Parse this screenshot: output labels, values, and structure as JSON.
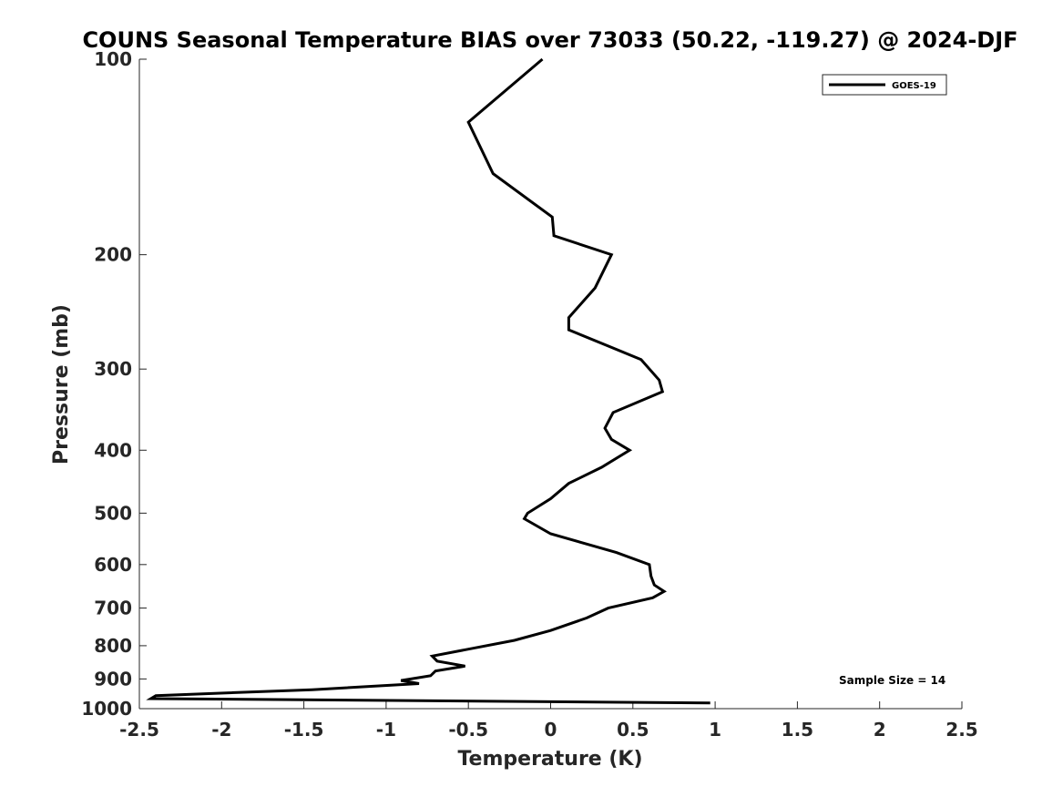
{
  "chart_data": {
    "type": "line",
    "title": "COUNS Seasonal Temperature BIAS over 73033 (50.22, -119.27) @ 2024-DJF",
    "xlabel": "Temperature (K)",
    "ylabel": "Pressure (mb)",
    "xlim": [
      -2.5,
      2.5
    ],
    "ylim": [
      100,
      1000
    ],
    "y_scale": "log",
    "y_reversed": true,
    "grid": false,
    "legend_position": "top-right",
    "x_ticks": [
      "-2.5",
      "-2",
      "-1.5",
      "-1",
      "-0.5",
      "0",
      "0.5",
      "1",
      "1.5",
      "2",
      "2.5"
    ],
    "y_ticks": [
      "100",
      "200",
      "300",
      "400",
      "500",
      "600",
      "700",
      "800",
      "900",
      "1000"
    ],
    "series": [
      {
        "name": "GOES-19",
        "color": "#000000",
        "points": [
          [
            -0.05,
            100
          ],
          [
            -0.5,
            125
          ],
          [
            -0.35,
            150
          ],
          [
            0.01,
            175
          ],
          [
            0.02,
            187
          ],
          [
            0.37,
            200
          ],
          [
            0.27,
            225
          ],
          [
            0.11,
            250
          ],
          [
            0.11,
            261
          ],
          [
            0.55,
            290
          ],
          [
            0.66,
            312
          ],
          [
            0.68,
            325
          ],
          [
            0.38,
            350
          ],
          [
            0.33,
            370
          ],
          [
            0.37,
            385
          ],
          [
            0.48,
            400
          ],
          [
            0.31,
            425
          ],
          [
            0.11,
            450
          ],
          [
            0.0,
            475
          ],
          [
            -0.14,
            500
          ],
          [
            -0.16,
            510
          ],
          [
            0.0,
            538
          ],
          [
            0.4,
            575
          ],
          [
            0.6,
            600
          ],
          [
            0.61,
            625
          ],
          [
            0.63,
            645
          ],
          [
            0.69,
            660
          ],
          [
            0.62,
            675
          ],
          [
            0.35,
            700
          ],
          [
            0.22,
            725
          ],
          [
            0.0,
            758
          ],
          [
            -0.22,
            785
          ],
          [
            -0.5,
            810
          ],
          [
            -0.72,
            830
          ],
          [
            -0.69,
            845
          ],
          [
            -0.52,
            860
          ],
          [
            -0.7,
            875
          ],
          [
            -0.73,
            890
          ],
          [
            -0.91,
            905
          ],
          [
            -0.8,
            915
          ],
          [
            -1.45,
            935
          ],
          [
            -2.4,
            955
          ],
          [
            -2.43,
            965
          ],
          [
            0.97,
            980
          ]
        ]
      }
    ],
    "legend": {
      "entries": [
        "GOES-19"
      ]
    },
    "annotation": "Sample Size = 14"
  }
}
